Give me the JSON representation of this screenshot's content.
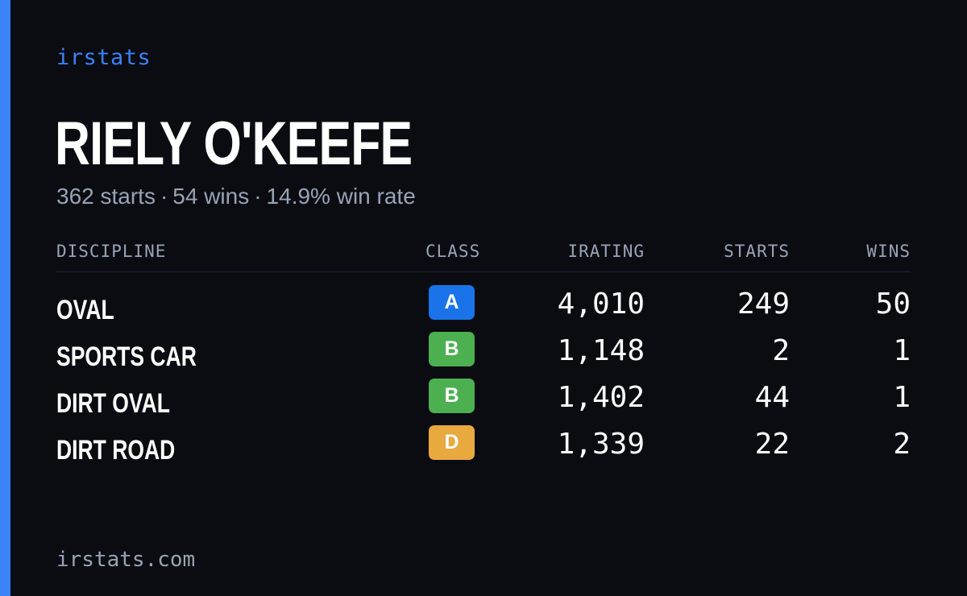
{
  "brand": "irstats",
  "driver": {
    "name": "RIELY O'KEEFE"
  },
  "summary": {
    "starts": "362 starts",
    "wins": "54 wins",
    "win_rate": "14.9% win rate",
    "separator": "·"
  },
  "table": {
    "headers": {
      "discipline": "DISCIPLINE",
      "class": "CLASS",
      "irating": "IRATING",
      "starts": "STARTS",
      "wins": "WINS"
    },
    "rows": [
      {
        "discipline": "OVAL",
        "class": "A",
        "class_color": "#1a73e8",
        "irating": "4,010",
        "starts": "249",
        "wins": "50"
      },
      {
        "discipline": "SPORTS CAR",
        "class": "B",
        "class_color": "#4caf50",
        "irating": "1,148",
        "starts": "2",
        "wins": "1"
      },
      {
        "discipline": "DIRT OVAL",
        "class": "B",
        "class_color": "#4caf50",
        "irating": "1,402",
        "starts": "44",
        "wins": "1"
      },
      {
        "discipline": "DIRT ROAD",
        "class": "D",
        "class_color": "#e8a93f",
        "irating": "1,339",
        "starts": "22",
        "wins": "2"
      }
    ]
  },
  "footer": {
    "url": "irstats.com"
  },
  "colors": {
    "background": "#0a0c12",
    "accent": "#3b82f6",
    "muted": "#9aa3b5"
  }
}
